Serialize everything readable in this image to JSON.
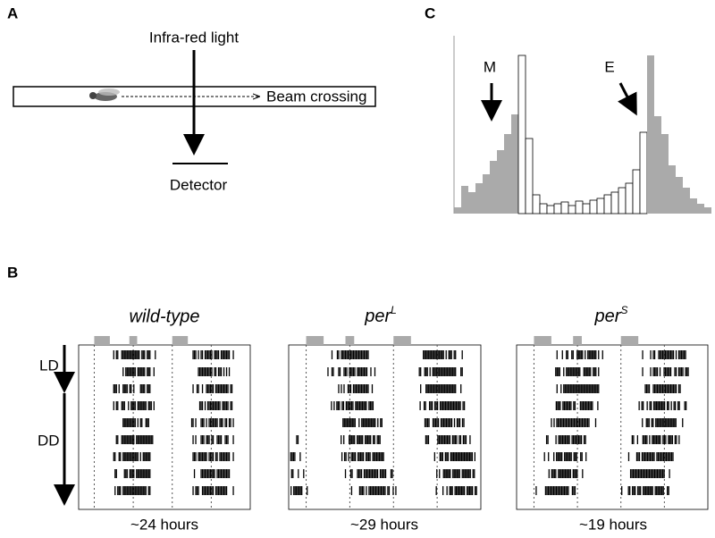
{
  "panel_a": {
    "label": "A",
    "light": "Infra-red light",
    "beam": "Beam crossing",
    "detector": "Detector"
  },
  "panel_b": {
    "label": "B",
    "ld": "LD",
    "dd": "DD",
    "actograms": [
      {
        "title": "wild-type",
        "period": "~24 hours"
      },
      {
        "title": "per",
        "superscript": "L",
        "period": "~29 hours"
      },
      {
        "title": "per",
        "superscript": "S",
        "period": "~19 hours"
      }
    ]
  },
  "panel_c": {
    "label": "C",
    "morning": "M",
    "evening": "E"
  }
}
